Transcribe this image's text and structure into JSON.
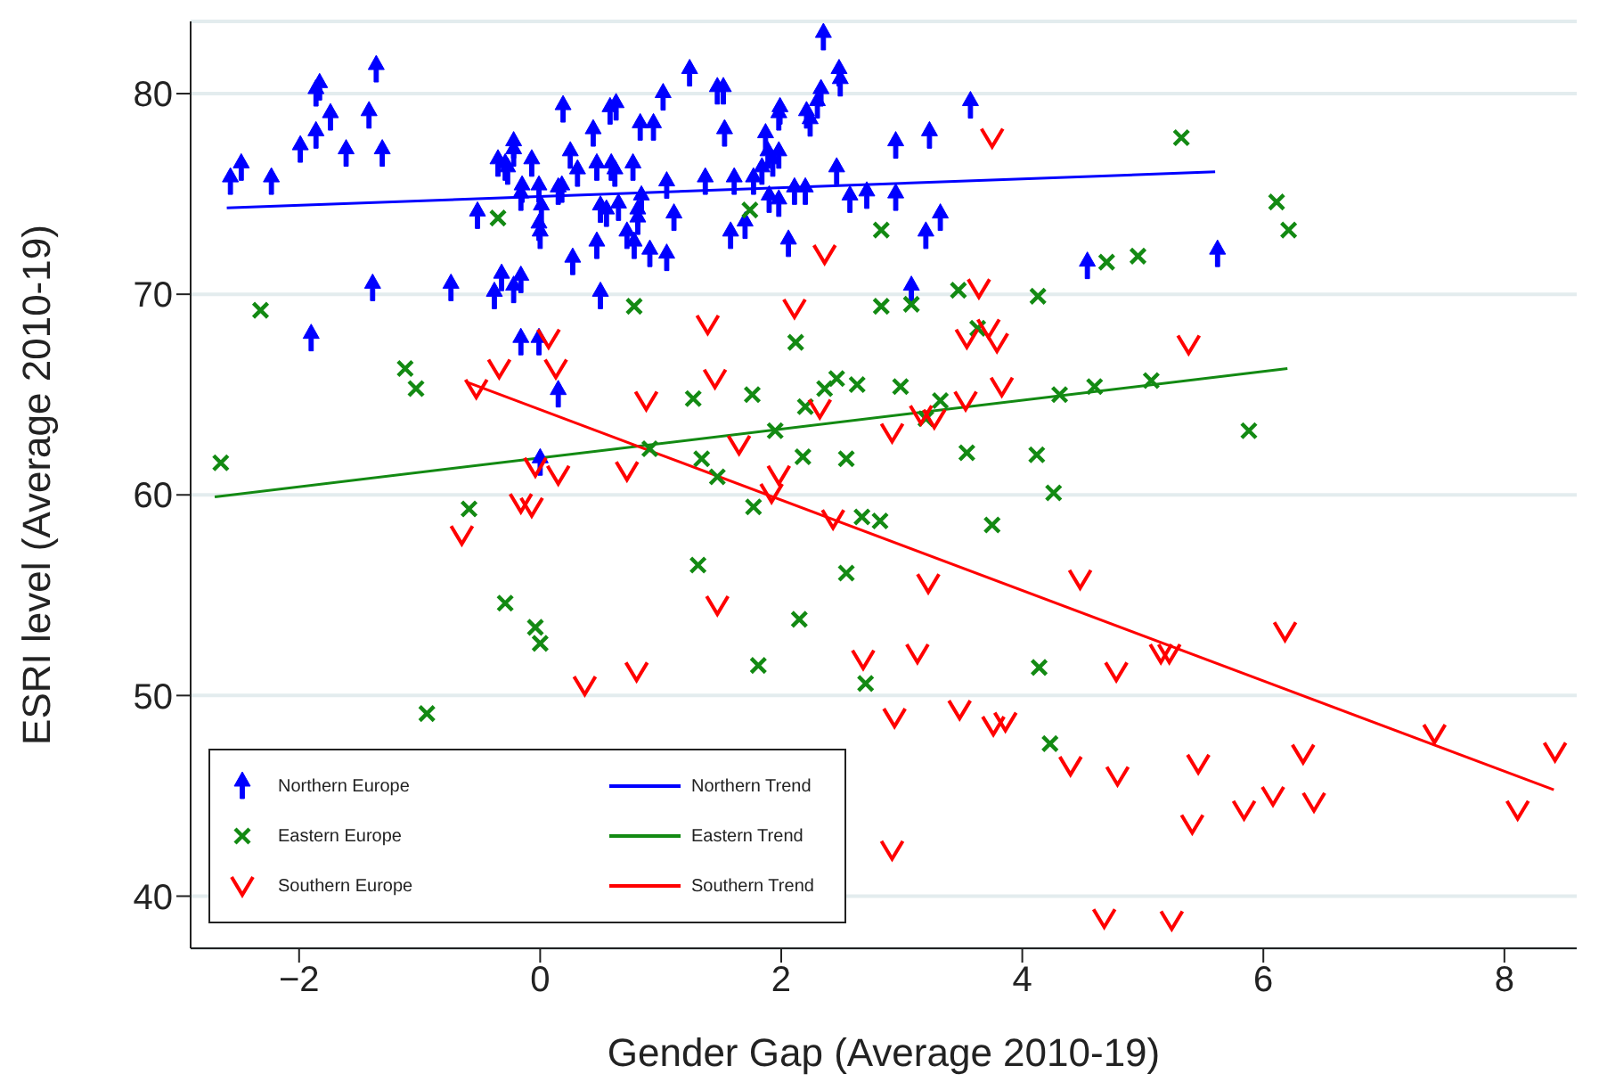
{
  "chart_data": {
    "type": "scatter",
    "xlabel": "Gender Gap (Average 2010-19)",
    "ylabel": "ESRI level (Average 2010-19)",
    "xlim": [
      -2.9,
      8.6
    ],
    "ylim": [
      37.4,
      83.6
    ],
    "xticks": [
      -2,
      0,
      2,
      4,
      6,
      8
    ],
    "yticks": [
      40,
      50,
      60,
      70,
      80
    ],
    "grid": "y",
    "legend": "bottom left",
    "series": [
      {
        "name": "Northern Europe",
        "type": "scatter",
        "marker": "triangle",
        "color": "#0000ff",
        "x": [
          -2.57,
          -2.48,
          -2.23,
          -1.99,
          -1.86,
          -1.86,
          -1.83,
          -1.74,
          -1.61,
          -1.42,
          -1.36,
          -1.31,
          -1.39,
          -1.9,
          -0.74,
          -0.52,
          -0.38,
          -0.32,
          -0.22,
          -0.16,
          -0.16,
          -0.01,
          0.15,
          0.0,
          -0.35,
          -0.29,
          -0.22,
          -0.22,
          -0.27,
          -0.07,
          -0.15,
          -0.01,
          -0.16,
          0.01,
          -0.01,
          0.0,
          0.15,
          0.18,
          0.19,
          0.25,
          0.31,
          0.27,
          0.44,
          0.47,
          0.47,
          0.5,
          0.5,
          0.55,
          0.58,
          0.63,
          0.59,
          0.62,
          0.65,
          0.72,
          0.77,
          0.78,
          0.81,
          0.81,
          0.84,
          0.83,
          0.91,
          0.94,
          1.02,
          1.24,
          1.47,
          1.52,
          1.53,
          1.05,
          1.11,
          1.05,
          1.37,
          1.58,
          1.7,
          1.61,
          1.77,
          1.87,
          1.89,
          1.84,
          1.93,
          1.98,
          1.9,
          1.98,
          1.99,
          1.98,
          2.06,
          2.11,
          2.2,
          2.21,
          2.24,
          2.3,
          2.33,
          2.35,
          2.48,
          2.49,
          2.46,
          2.57,
          2.71,
          2.95,
          2.95,
          3.23,
          3.2,
          3.32,
          3.57,
          3.08,
          4.54,
          5.62
        ],
        "values": [
          75.6,
          76.3,
          75.6,
          77.2,
          77.9,
          80.0,
          80.3,
          78.8,
          77.0,
          78.9,
          81.2,
          77.0,
          70.3,
          67.8,
          70.3,
          73.9,
          69.9,
          70.8,
          70.2,
          70.7,
          67.6,
          67.6,
          65.0,
          61.6,
          76.5,
          76.3,
          77.4,
          77.0,
          76.1,
          76.5,
          75.2,
          75.2,
          74.8,
          74.2,
          73.3,
          72.9,
          75.1,
          75.2,
          79.2,
          76.9,
          76.0,
          71.6,
          78.0,
          76.3,
          72.4,
          69.9,
          74.2,
          74.0,
          79.1,
          79.3,
          76.3,
          76.0,
          74.3,
          72.9,
          76.3,
          72.4,
          74.0,
          73.6,
          74.7,
          78.3,
          72.0,
          78.3,
          79.8,
          81.0,
          80.1,
          80.1,
          78.0,
          71.8,
          73.8,
          75.4,
          75.6,
          72.9,
          73.4,
          75.6,
          75.6,
          77.8,
          76.9,
          76.1,
          76.5,
          76.9,
          74.7,
          74.5,
          79.1,
          78.8,
          72.5,
          75.1,
          75.1,
          78.9,
          78.5,
          79.4,
          80.0,
          82.8,
          81.0,
          80.5,
          76.1,
          74.7,
          74.9,
          74.8,
          77.4,
          77.9,
          72.9,
          73.8,
          79.4,
          70.2,
          71.4,
          72.0
        ]
      },
      {
        "name": "Eastern Europe",
        "type": "scatter",
        "marker": "cross",
        "color": "#138a13",
        "x": [
          -0.35,
          -2.32,
          -1.12,
          -1.03,
          -2.65,
          0.78,
          0.91,
          -0.59,
          -0.29,
          -0.04,
          0.0,
          -0.94,
          1.74,
          2.83,
          2.83,
          3.08,
          3.47,
          3.63,
          4.13,
          4.7,
          2.12,
          2.46,
          2.36,
          2.63,
          2.99,
          3.32,
          3.2,
          4.31,
          4.6,
          1.27,
          1.76,
          2.2,
          1.95,
          1.34,
          1.47,
          2.18,
          2.54,
          3.54,
          4.12,
          4.26,
          5.32,
          6.11,
          6.21,
          4.96,
          5.07,
          5.88,
          1.77,
          2.67,
          2.82,
          3.75,
          1.31,
          2.54,
          2.15,
          1.81,
          2.7,
          4.14,
          4.23
        ],
        "values": [
          73.8,
          69.2,
          66.3,
          65.3,
          61.6,
          69.4,
          62.3,
          59.3,
          54.6,
          53.4,
          52.6,
          49.1,
          74.2,
          73.2,
          69.4,
          69.5,
          70.2,
          68.3,
          69.9,
          71.6,
          67.6,
          65.8,
          65.3,
          65.5,
          65.4,
          64.7,
          63.8,
          65.0,
          65.4,
          64.8,
          65.0,
          64.4,
          63.2,
          61.8,
          60.9,
          61.9,
          61.8,
          62.1,
          62.0,
          60.1,
          77.8,
          74.6,
          73.2,
          71.9,
          65.7,
          63.2,
          59.4,
          58.9,
          58.7,
          58.5,
          56.5,
          56.1,
          53.8,
          51.5,
          50.6,
          51.4,
          47.6
        ]
      },
      {
        "name": "Southern Europe",
        "type": "scatter",
        "color": "#ff0000",
        "x": [
          0.07,
          -0.34,
          0.13,
          -0.53,
          0.88,
          -0.04,
          0.15,
          0.72,
          -0.16,
          -0.07,
          -0.65,
          0.37,
          0.8,
          3.75,
          2.36,
          3.64,
          2.11,
          1.39,
          3.54,
          3.72,
          3.79,
          1.45,
          3.83,
          2.32,
          3.53,
          3.16,
          3.27,
          2.92,
          1.65,
          1.98,
          1.92,
          2.43,
          1.47,
          3.22,
          4.48,
          2.68,
          3.13,
          4.78,
          2.94,
          3.48,
          3.76,
          3.86,
          4.4,
          4.79,
          2.92,
          4.68,
          6.18,
          5.15,
          5.22,
          7.42,
          8.42,
          5.46,
          6.33,
          6.08,
          5.84,
          6.42,
          5.41,
          8.11,
          5.24,
          5.38
        ],
        "values": [
          67.8,
          66.3,
          66.3,
          65.3,
          64.7,
          61.4,
          61.0,
          61.2,
          59.6,
          59.4,
          58.0,
          50.5,
          51.2,
          77.8,
          72.0,
          70.3,
          69.3,
          68.5,
          67.8,
          68.3,
          67.6,
          65.8,
          65.4,
          64.3,
          64.7,
          64.0,
          63.8,
          63.1,
          62.5,
          61.0,
          60.1,
          58.8,
          54.5,
          55.6,
          55.8,
          51.8,
          52.1,
          51.2,
          48.9,
          49.3,
          48.5,
          48.7,
          46.5,
          46.0,
          42.3,
          38.9,
          53.2,
          52.1,
          52.1,
          48.1,
          47.2,
          46.6,
          47.1,
          45.0,
          44.3,
          44.7,
          43.6,
          44.3,
          38.8,
          67.5
        ]
      },
      {
        "name": "Northern Trend",
        "type": "line",
        "color": "#0000ff",
        "x": [
          -2.6,
          5.6
        ],
        "values": [
          74.3,
          76.1
        ]
      },
      {
        "name": "Eastern Trend",
        "type": "line",
        "color": "#138a13",
        "x": [
          -2.7,
          6.2
        ],
        "values": [
          59.9,
          66.3
        ]
      },
      {
        "name": "Southern Trend",
        "type": "line",
        "color": "#ff0000",
        "x": [
          -0.6,
          8.41
        ],
        "values": [
          65.6,
          45.3
        ]
      }
    ]
  }
}
